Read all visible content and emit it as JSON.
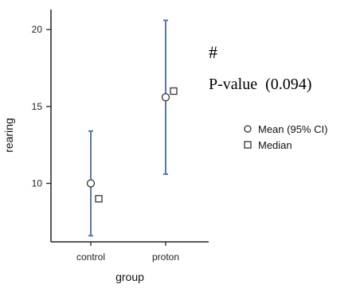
{
  "chart_data": {
    "type": "scatter",
    "xlabel": "group",
    "ylabel": "rearing",
    "categories": [
      "control",
      "proton"
    ],
    "yticks": [
      10,
      15,
      20
    ],
    "ylim": [
      6.2,
      21.3
    ],
    "grid": false,
    "legend_position": "right",
    "series": [
      {
        "name": "Mean (95% CI)",
        "marker": "circle",
        "values": [
          10.0,
          15.6
        ],
        "ci_low": [
          6.6,
          10.6
        ],
        "ci_high": [
          13.4,
          20.6
        ]
      },
      {
        "name": "Median",
        "marker": "square",
        "values": [
          9.0,
          16.0
        ]
      }
    ],
    "annotations": [
      "#",
      "P-value  (0.094)"
    ],
    "colors": {
      "error_bar": "#5a78a8",
      "marker_edge": "#333333",
      "axis": "#222222"
    }
  }
}
